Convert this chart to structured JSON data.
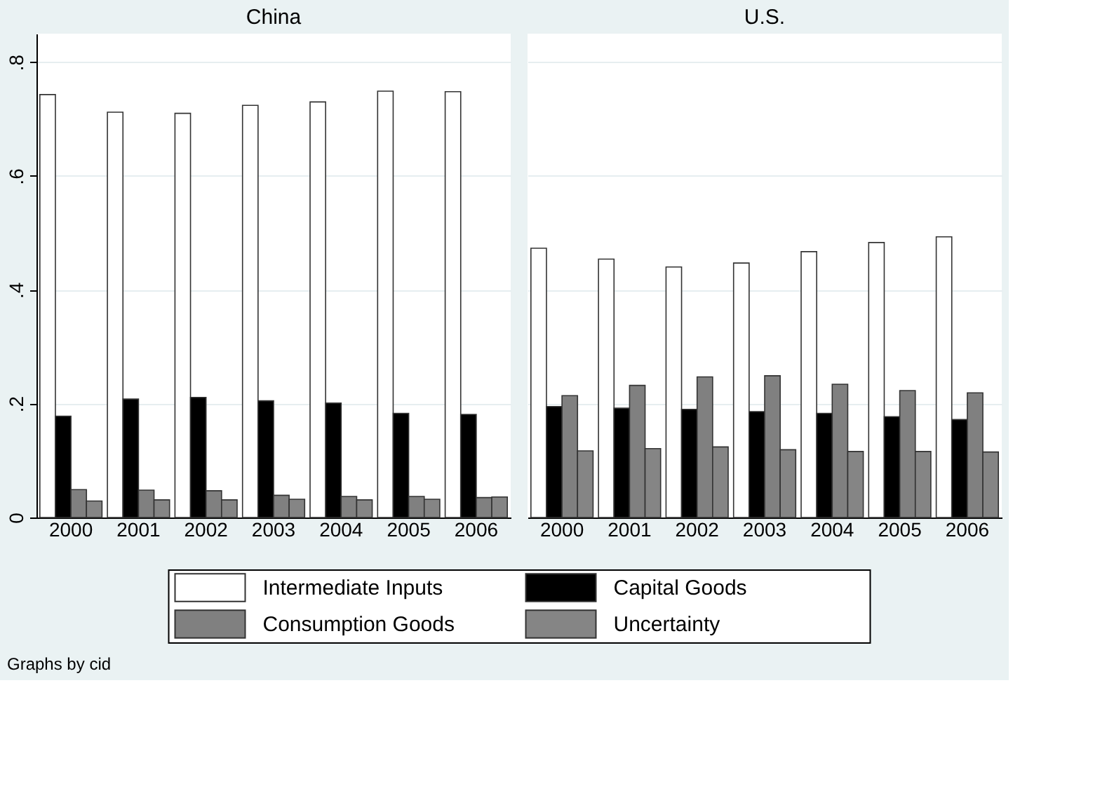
{
  "chart_data": [
    {
      "type": "bar",
      "title": "China",
      "categories": [
        "2000",
        "2001",
        "2002",
        "2003",
        "2004",
        "2005",
        "2006"
      ],
      "series": [
        {
          "name": "Intermediate Inputs",
          "color": "#ffffff",
          "values": [
            0.743,
            0.712,
            0.71,
            0.724,
            0.73,
            0.749,
            0.748
          ]
        },
        {
          "name": "Capital Goods",
          "color": "#000000",
          "values": [
            0.178,
            0.208,
            0.211,
            0.205,
            0.201,
            0.183,
            0.181
          ]
        },
        {
          "name": "Consumption Goods",
          "color": "#808080",
          "values": [
            0.049,
            0.048,
            0.047,
            0.039,
            0.037,
            0.037,
            0.035
          ]
        },
        {
          "name": "Uncertainty",
          "color": "#858585",
          "values": [
            0.029,
            0.031,
            0.031,
            0.032,
            0.031,
            0.032,
            0.036
          ]
        }
      ],
      "ylim": [
        0,
        0.85
      ],
      "yticks": [
        0,
        {
          "value": 0.2,
          "label": ".2"
        },
        {
          "value": 0.4,
          "label": ".4"
        },
        {
          "value": 0.6,
          "label": ".6"
        },
        {
          "value": 0.8,
          "label": ".8"
        }
      ],
      "grid": "y",
      "legend": "bottom",
      "annotations": [
        "Graphs by cid"
      ]
    },
    {
      "type": "bar",
      "title": "U.S.",
      "categories": [
        "2000",
        "2001",
        "2002",
        "2003",
        "2004",
        "2005",
        "2006"
      ],
      "series": [
        {
          "color": "#ffffff",
          "values": [
            0.473,
            0.454,
            0.44,
            0.447,
            0.467,
            0.483,
            0.493
          ]
        },
        {
          "color": "#000000",
          "values": [
            0.195,
            0.192,
            0.19,
            0.186,
            0.183,
            0.177,
            0.172
          ]
        },
        {
          "color": "#808080",
          "values": [
            0.214,
            0.232,
            0.247,
            0.249,
            0.234,
            0.223,
            0.219
          ]
        },
        {
          "color": "#858585",
          "values": [
            0.117,
            0.121,
            0.124,
            0.119,
            0.116,
            0.116,
            0.115
          ]
        }
      ],
      "ylim": [
        0,
        0.85
      ],
      "yticks": [
        0,
        0.2,
        0.4,
        0.6,
        0.8
      ],
      "grid": "y",
      "tick_labels": "x"
    }
  ]
}
